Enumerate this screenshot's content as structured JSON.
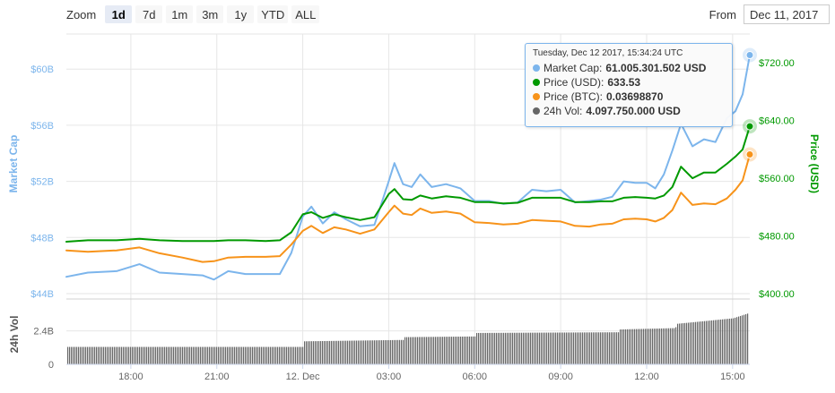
{
  "toolbar": {
    "zoom_label": "Zoom",
    "zoom_buttons": [
      "1d",
      "7d",
      "1m",
      "3m",
      "1y",
      "YTD",
      "ALL"
    ],
    "active_zoom": "1d",
    "from_label": "From",
    "from_value": "Dec 11, 2017"
  },
  "tooltip": {
    "time": "Tuesday, Dec 12 2017, 15:34:24 UTC",
    "rows": [
      {
        "label": "Market Cap:",
        "value": "61.005.301.502 USD",
        "color": "#7cb5ec"
      },
      {
        "label": "Price (USD):",
        "value": "633.53",
        "color": "#009900"
      },
      {
        "label": "Price (BTC):",
        "value": "0.03698870",
        "color": "#f7931a"
      },
      {
        "label": "24h Vol:",
        "value": "4.097.750.000 USD",
        "color": "#666666"
      }
    ]
  },
  "colors": {
    "market_cap": "#7cb5ec",
    "price_usd": "#009900",
    "price_btc": "#f7931a",
    "volume": "#666666",
    "grid": "#e6e6e6"
  },
  "chart_data": {
    "type": "line",
    "x_axis": {
      "ticks": [
        {
          "t": 4,
          "label": "18:00"
        },
        {
          "t": 7,
          "label": "21:00"
        },
        {
          "t": 10,
          "label": "12. Dec"
        },
        {
          "t": 13,
          "label": "03:00"
        },
        {
          "t": 16,
          "label": "06:00"
        },
        {
          "t": 19,
          "label": "09:00"
        },
        {
          "t": 22,
          "label": "12:00"
        },
        {
          "t": 25,
          "label": "15:00"
        }
      ],
      "range": [
        1.75,
        25.6
      ]
    },
    "y_axis_left": {
      "title": "Market Cap",
      "ticks": [
        "$44B",
        "$48B",
        "$52B",
        "$56B",
        "$60B"
      ],
      "tick_values": [
        44,
        48,
        52,
        56,
        60
      ],
      "range": [
        44,
        62.5
      ]
    },
    "y_axis_right": {
      "title": "Price (USD)",
      "ticks": [
        "$400.00",
        "$480.00",
        "$560.00",
        "$640.00",
        "$720.00"
      ],
      "tick_values": [
        400,
        480,
        560,
        640,
        720
      ],
      "range": [
        400,
        760
      ]
    },
    "volume_axis": {
      "title": "24h Vol",
      "ticks": [
        "0",
        "2.4B"
      ],
      "tick_values": [
        0,
        2.4
      ],
      "range": [
        0,
        4.3
      ]
    },
    "series": [
      {
        "name": "Market Cap",
        "axis": "left",
        "color": "#7cb5ec",
        "x": [
          1.75,
          2.5,
          3.5,
          4.3,
          5.0,
          5.8,
          6.5,
          6.9,
          7.4,
          8.0,
          8.7,
          9.2,
          9.6,
          10.0,
          10.3,
          10.7,
          11.1,
          11.5,
          12.0,
          12.5,
          13.0,
          13.2,
          13.5,
          13.8,
          14.1,
          14.5,
          15.0,
          15.5,
          16.0,
          16.5,
          17.0,
          17.5,
          18.0,
          18.5,
          19.0,
          19.5,
          20.0,
          20.4,
          20.8,
          21.2,
          21.6,
          22.0,
          22.3,
          22.6,
          22.9,
          23.2,
          23.6,
          24.0,
          24.4,
          24.8,
          25.1,
          25.35,
          25.6
        ],
        "values": [
          45.2,
          45.5,
          45.6,
          46.1,
          45.5,
          45.4,
          45.3,
          45.0,
          45.6,
          45.4,
          45.4,
          45.4,
          46.9,
          49.5,
          50.2,
          49.0,
          49.8,
          49.3,
          48.8,
          48.9,
          52.0,
          53.3,
          51.8,
          51.6,
          52.5,
          51.6,
          51.8,
          51.5,
          50.6,
          50.6,
          50.4,
          50.5,
          51.4,
          51.3,
          51.4,
          50.5,
          50.6,
          50.7,
          50.9,
          52.0,
          51.9,
          51.9,
          51.5,
          52.5,
          54.2,
          56.1,
          54.5,
          55.0,
          54.8,
          56.5,
          57.0,
          58.2,
          61.0
        ]
      },
      {
        "name": "Price (USD)",
        "axis": "right",
        "color": "#009900",
        "x": [
          1.75,
          2.5,
          3.5,
          4.3,
          5.0,
          5.8,
          6.5,
          6.9,
          7.4,
          8.0,
          8.7,
          9.2,
          9.6,
          10.0,
          10.3,
          10.7,
          11.1,
          11.5,
          12.0,
          12.5,
          13.0,
          13.2,
          13.5,
          13.8,
          14.1,
          14.5,
          15.0,
          15.5,
          16.0,
          16.5,
          17.0,
          17.5,
          18.0,
          18.5,
          19.0,
          19.5,
          20.0,
          20.4,
          20.8,
          21.2,
          21.6,
          22.0,
          22.3,
          22.6,
          22.9,
          23.2,
          23.6,
          24.0,
          24.4,
          24.8,
          25.1,
          25.35,
          25.6
        ],
        "values": [
          472,
          474,
          474,
          476,
          474,
          473,
          473,
          473,
          474,
          474,
          473,
          474,
          485,
          510,
          513,
          505,
          510,
          506,
          502,
          506,
          538,
          545,
          531,
          530,
          536,
          532,
          535,
          533,
          527,
          527,
          525,
          526,
          533,
          533,
          533,
          527,
          527,
          528,
          528,
          533,
          534,
          533,
          532,
          536,
          548,
          576,
          560,
          568,
          568,
          580,
          590,
          600,
          632
        ]
      },
      {
        "name": "Price (BTC)",
        "axis": "right",
        "color": "#f7931a",
        "x": [
          1.75,
          2.5,
          3.5,
          4.3,
          5.0,
          5.8,
          6.5,
          6.9,
          7.4,
          8.0,
          8.7,
          9.2,
          9.6,
          10.0,
          10.3,
          10.7,
          11.1,
          11.5,
          12.0,
          12.5,
          13.0,
          13.2,
          13.5,
          13.8,
          14.1,
          14.5,
          15.0,
          15.5,
          16.0,
          16.5,
          17.0,
          17.5,
          18.0,
          18.5,
          19.0,
          19.5,
          20.0,
          20.4,
          20.8,
          21.2,
          21.6,
          22.0,
          22.3,
          22.6,
          22.9,
          23.2,
          23.6,
          24.0,
          24.4,
          24.8,
          25.1,
          25.35,
          25.6
        ],
        "values": [
          460,
          458,
          460,
          464,
          456,
          450,
          444,
          445,
          450,
          451,
          451,
          452,
          468,
          487,
          494,
          484,
          492,
          489,
          483,
          489,
          513,
          522,
          511,
          509,
          518,
          512,
          514,
          511,
          499,
          498,
          496,
          497,
          502,
          501,
          500,
          494,
          493,
          496,
          497,
          503,
          504,
          503,
          500,
          505,
          516,
          540,
          523,
          525,
          524,
          532,
          544,
          557,
          593
        ]
      }
    ],
    "volume": {
      "name": "24h Vol",
      "x": [
        1.75,
        10.0,
        10.01,
        13.5,
        13.51,
        16.0,
        16.01,
        21.0,
        21.01,
        23.0,
        23.01,
        25.0,
        25.6
      ],
      "values": [
        1.25,
        1.25,
        1.65,
        1.75,
        1.95,
        2.0,
        2.25,
        2.3,
        2.5,
        2.6,
        2.9,
        3.3,
        3.7
      ]
    }
  }
}
